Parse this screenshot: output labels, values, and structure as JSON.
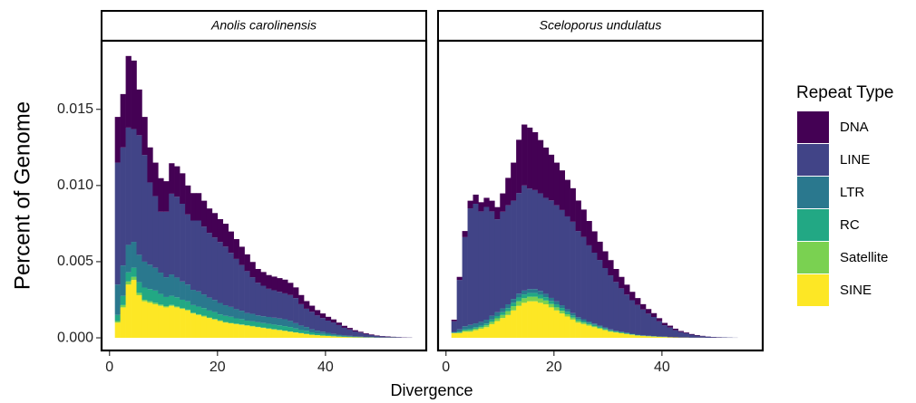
{
  "chart_data": {
    "type": "histogram",
    "stacked": true,
    "xlabel": "Divergence",
    "ylabel": "Percent of Genome",
    "legend_title": "Repeat Type",
    "legend": "right",
    "xlim": [
      -1.3,
      58.5
    ],
    "ylim": [
      -0.00083,
      0.0195
    ],
    "xticks": [
      0,
      20,
      40
    ],
    "yticks": [
      {
        "value": 0,
        "label": "0.000"
      },
      0.005,
      {
        "value": 0.01,
        "label": "0.010"
      },
      0.015
    ],
    "series": [
      {
        "name": "DNA",
        "color": "#440154"
      },
      {
        "name": "LINE",
        "color": "#414487"
      },
      {
        "name": "LTR",
        "color": "#2A788E"
      },
      {
        "name": "RC",
        "color": "#22A884"
      },
      {
        "name": "Satellite",
        "color": "#7AD151"
      },
      {
        "name": "SINE",
        "color": "#FDE725"
      }
    ],
    "facets": [
      {
        "title": "Anolis carolinensis",
        "bins": [
          1,
          2,
          3,
          4,
          5,
          6,
          7,
          8,
          9,
          10,
          11,
          12,
          13,
          14,
          15,
          16,
          17,
          18,
          19,
          20,
          21,
          22,
          23,
          24,
          25,
          26,
          27,
          28,
          29,
          30,
          31,
          32,
          33,
          34,
          35,
          36,
          37,
          38,
          39,
          40,
          41,
          42,
          43,
          44,
          45,
          46,
          47,
          48,
          49,
          50,
          51,
          52,
          53,
          54,
          55,
          56
        ],
        "series": [
          {
            "values": [
              0.003,
              0.0035,
              0.0047,
              0.0045,
              0.003,
              0.0025,
              0.0023,
              0.0022,
              0.0022,
              0.002,
              0.002,
              0.002,
              0.002,
              0.0019,
              0.0018,
              0.0018,
              0.0017,
              0.0016,
              0.0016,
              0.0015,
              0.0015,
              0.0014,
              0.0013,
              0.0012,
              0.0011,
              0.001,
              0.0009,
              0.0009,
              0.0009,
              0.0009,
              0.0009,
              0.0009,
              0.0008,
              0.0007,
              0.0006,
              0.0005,
              0.0004,
              0.00035,
              0.0003,
              0.00025,
              0.0002,
              0.00016,
              0.00013,
              0.0001,
              8e-05,
              6e-05,
              5e-05,
              4e-05,
              3e-05,
              2e-05,
              2e-05,
              1e-05,
              1e-05,
              1e-05,
              5e-06
            ]
          },
          {
            "values": [
              0.008,
              0.00775,
              0.0077,
              0.0074,
              0.00785,
              0.007,
              0.0054,
              0.0047,
              0.004,
              0.0043,
              0.0053,
              0.0053,
              0.0051,
              0.0046,
              0.00455,
              0.00465,
              0.00445,
              0.00425,
              0.0041,
              0.004,
              0.00385,
              0.00355,
              0.0033,
              0.003,
              0.00275,
              0.0024,
              0.00215,
              0.002,
              0.00185,
              0.0018,
              0.00175,
              0.0017,
              0.0017,
              0.00165,
              0.0014,
              0.0012,
              0.00115,
              0.001,
              0.0009,
              0.0008,
              0.00075,
              0.00063,
              0.0005,
              0.00042,
              0.00032,
              0.00026,
              0.0002,
              0.00013,
              0.0001,
              8e-05,
              6e-05,
              4e-05,
              3e-05,
              2e-05,
              1.5e-05
            ]
          },
          {
            "values": [
              0.002,
              0.002,
              0.0018,
              0.0017,
              0.0018,
              0.0017,
              0.0016,
              0.0015,
              0.0014,
              0.0013,
              0.0014,
              0.0013,
              0.0012,
              0.0011,
              0.001,
              0.001,
              0.0009,
              0.00085,
              0.0008,
              0.00075,
              0.0007,
              0.00065,
              0.0006,
              0.00055,
              0.0005,
              0.0005,
              0.00045,
              0.00045,
              0.00045,
              0.00045,
              0.00045,
              0.00045,
              0.0004,
              0.00035,
              0.0003,
              0.00025,
              0.0002,
              0.00017,
              0.00015,
              0.00012,
              0.0001,
              8e-05,
              6e-05,
              5e-05,
              4e-05,
              3e-05,
              2e-05,
              2e-05,
              1e-05,
              1e-05,
              1e-05,
              1e-05,
              1e-05,
              0,
              0
            ]
          },
          {
            "values": [
              0.0004,
              0.0006,
              0.0006,
              0.0006,
              0.0007,
              0.0008,
              0.0008,
              0.0008,
              0.0007,
              0.0006,
              0.0006,
              0.0006,
              0.00055,
              0.00055,
              0.0005,
              0.0005,
              0.0005,
              0.00045,
              0.00045,
              0.0004,
              0.0004,
              0.0004,
              0.00035,
              0.00035,
              0.0003,
              0.0003,
              0.0003,
              0.0003,
              0.0003,
              0.0003,
              0.0003,
              0.0003,
              0.0003,
              0.00025,
              0.0002,
              0.0002,
              0.00015,
              0.00012,
              0.0001,
              8e-05,
              6e-05,
              5e-05,
              4e-05,
              3e-05,
              2e-05,
              2e-05,
              1e-05,
              1e-05,
              1e-05,
              0,
              0,
              0,
              0,
              0,
              0
            ]
          },
          {
            "values": [
              0.0001,
              0.00015,
              0.0002,
              0.0002,
              0.00015,
              0.0001,
              0.0001,
              0.0001,
              8e-05,
              8e-05,
              6e-05,
              6e-05,
              5e-05,
              5e-05,
              5e-05,
              5e-05,
              5e-05,
              4e-05,
              4e-05,
              4e-05,
              4e-05,
              3e-05,
              3e-05,
              3e-05,
              3e-05,
              3e-05,
              2e-05,
              2e-05,
              2e-05,
              2e-05,
              2e-05,
              2e-05,
              1e-05,
              1e-05,
              1e-05,
              1e-05,
              1e-05,
              1e-05,
              1e-05,
              1e-05,
              0,
              0,
              0,
              0,
              0,
              0,
              0,
              0,
              0,
              0,
              0,
              0,
              0,
              0,
              0
            ]
          },
          {
            "values": [
              0.001,
              0.002,
              0.0035,
              0.0038,
              0.0028,
              0.0024,
              0.0023,
              0.0022,
              0.0021,
              0.002,
              0.0021,
              0.002,
              0.0019,
              0.0018,
              0.0016,
              0.0015,
              0.0014,
              0.0013,
              0.0012,
              0.0011,
              0.001,
              0.00095,
              0.0009,
              0.00085,
              0.0008,
              0.00075,
              0.0007,
              0.00065,
              0.0006,
              0.00055,
              0.0005,
              0.00045,
              0.0004,
              0.00035,
              0.0003,
              0.00025,
              0.0002,
              0.00017,
              0.00014,
              0.00012,
              0.0001,
              8e-05,
              6e-05,
              5e-05,
              4e-05,
              3e-05,
              2e-05,
              2e-05,
              1e-05,
              1e-05,
              1e-05,
              1e-05,
              0,
              0,
              0
            ]
          }
        ]
      },
      {
        "title": "Sceloporus undulatus",
        "bins": [
          1,
          2,
          3,
          4,
          5,
          6,
          7,
          8,
          9,
          10,
          11,
          12,
          13,
          14,
          15,
          16,
          17,
          18,
          19,
          20,
          21,
          22,
          23,
          24,
          25,
          26,
          27,
          28,
          29,
          30,
          31,
          32,
          33,
          34,
          35,
          36,
          37,
          38,
          39,
          40,
          41,
          42,
          43,
          44,
          45,
          46,
          47,
          48,
          49,
          50,
          51,
          52,
          53,
          54
        ],
        "series": [
          {
            "values": [
              0.0001,
              0.0002,
              0.0004,
              0.0005,
              0.0006,
              0.0006,
              0.0006,
              0.0007,
              0.0008,
              0.0012,
              0.0018,
              0.0025,
              0.0035,
              0.004,
              0.004,
              0.0038,
              0.0035,
              0.0033,
              0.003,
              0.0028,
              0.0026,
              0.0024,
              0.0022,
              0.002,
              0.0018,
              0.0016,
              0.0014,
              0.0012,
              0.0011,
              0.001,
              0.00085,
              0.00075,
              0.00065,
              0.00055,
              0.00045,
              0.00035,
              0.0003,
              0.00025,
              0.0002,
              0.00015,
              0.00012,
              9e-05,
              7e-05,
              5e-05,
              4e-05,
              3e-05,
              2e-05,
              1e-05,
              1e-05,
              1e-05,
              0,
              0,
              0
            ]
          },
          {
            "values": [
              0.0007,
              0.00325,
              0.00585,
              0.00765,
              0.00785,
              0.00725,
              0.0074,
              0.00685,
              0.0061,
              0.00635,
              0.0065,
              0.00645,
              0.0066,
              0.0069,
              0.0066,
              0.0065,
              0.0064,
              0.0063,
              0.0064,
              0.0063,
              0.00625,
              0.0061,
              0.006,
              0.00565,
              0.0054,
              0.005,
              0.00465,
              0.0043,
              0.0039,
              0.00355,
              0.0032,
              0.00285,
              0.0025,
              0.0022,
              0.00195,
              0.0017,
              0.00145,
              0.00125,
              0.001,
              0.00075,
              0.00064,
              0.00048,
              0.00036,
              0.00028,
              0.0002,
              0.00014,
              0.0001,
              8e-05,
              5e-05,
              3e-05,
              3e-05,
              2e-05,
              1e-05
            ]
          },
          {
            "values": [
              5e-05,
              0.00015,
              0.0002,
              0.00025,
              0.00025,
              0.00025,
              0.00025,
              0.00025,
              0.00025,
              0.00025,
              0.00025,
              0.00025,
              0.00025,
              0.00025,
              0.00025,
              0.00025,
              0.00025,
              0.00022,
              0.0002,
              0.0002,
              0.00018,
              0.00016,
              0.00015,
              0.00013,
              0.00012,
              0.0001,
              9e-05,
              8e-05,
              7e-05,
              6e-05,
              5e-05,
              4e-05,
              4e-05,
              3e-05,
              3e-05,
              2e-05,
              2e-05,
              2e-05,
              1e-05,
              1e-05,
              0,
              0,
              0,
              0,
              0,
              0,
              0,
              0,
              0,
              0,
              0,
              0,
              0
            ]
          },
          {
            "values": [
              2e-05,
              5e-05,
              8e-05,
              0.0001,
              0.0001,
              0.0001,
              0.00012,
              0.00015,
              0.00015,
              0.00018,
              0.0002,
              0.00022,
              0.00025,
              0.00025,
              0.00025,
              0.00025,
              0.00025,
              0.00022,
              0.0002,
              0.0002,
              0.00018,
              0.00016,
              0.00014,
              0.00012,
              0.0001,
              9e-05,
              8e-05,
              7e-05,
              6e-05,
              5e-05,
              4e-05,
              3e-05,
              3e-05,
              2e-05,
              2e-05,
              1e-05,
              1e-05,
              1e-05,
              1e-05,
              1e-05,
              0,
              0,
              0,
              0,
              0,
              0,
              0,
              0,
              0,
              0,
              0,
              0,
              0
            ]
          },
          {
            "values": [
              2e-05,
              5e-05,
              8e-05,
              0.0001,
              0.0001,
              0.0001,
              0.00012,
              0.00015,
              0.00018,
              0.0002,
              0.00025,
              0.00028,
              0.0003,
              0.0003,
              0.0003,
              0.0003,
              0.00028,
              0.00025,
              0.00022,
              0.0002,
              0.00018,
              0.00015,
              0.00013,
              0.00011,
              0.0001,
              8e-05,
              7e-05,
              6e-05,
              5e-05,
              4e-05,
              3e-05,
              3e-05,
              2e-05,
              2e-05,
              1e-05,
              1e-05,
              1e-05,
              1e-05,
              1e-05,
              1e-05,
              0,
              0,
              0,
              0,
              0,
              0,
              0,
              0,
              0,
              0,
              0,
              0,
              0
            ]
          },
          {
            "values": [
              0.0003,
              0.0003,
              0.0004,
              0.0004,
              0.0005,
              0.0006,
              0.0007,
              0.0009,
              0.0011,
              0.0013,
              0.0015,
              0.0018,
              0.0021,
              0.0023,
              0.0024,
              0.0024,
              0.0023,
              0.0022,
              0.002,
              0.0018,
              0.0016,
              0.0014,
              0.0012,
              0.001,
              0.0009,
              0.0008,
              0.0007,
              0.0006,
              0.0005,
              0.0004,
              0.00035,
              0.0003,
              0.00025,
              0.0002,
              0.00015,
              0.00012,
              0.0001,
              8e-05,
              6e-05,
              5e-05,
              4e-05,
              3e-05,
              2e-05,
              2e-05,
              1e-05,
              1e-05,
              1e-05,
              0,
              0,
              0,
              0,
              0,
              0
            ]
          }
        ]
      }
    ]
  }
}
